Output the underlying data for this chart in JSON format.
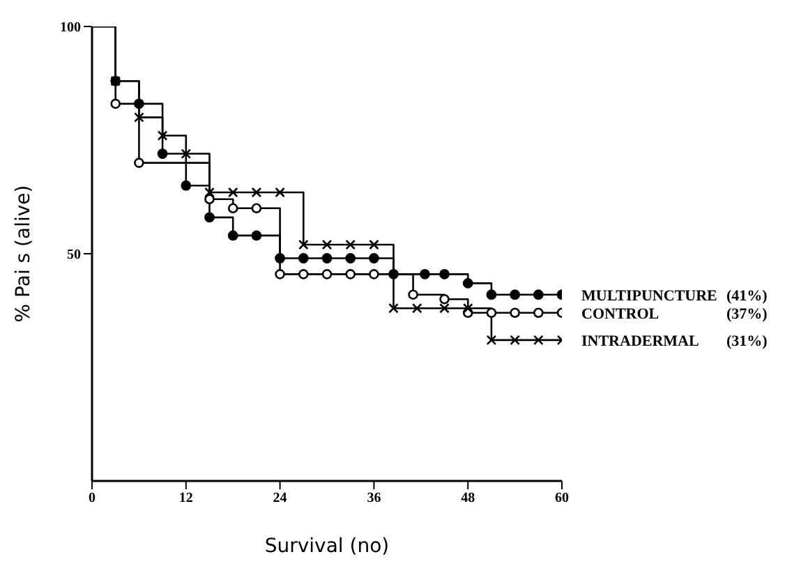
{
  "chart_data": {
    "type": "step",
    "xlabel": "Survival (no)",
    "ylabel": "% Pai   s (alive)",
    "xlim": [
      0,
      60
    ],
    "ylim": [
      0,
      100
    ],
    "xticks": [
      0,
      12,
      24,
      36,
      48,
      60
    ],
    "yticks": [
      50,
      100
    ],
    "line_style": "solid",
    "series": [
      {
        "name": "MULTIPUNCTURE",
        "color": "#000000",
        "marker": "circle",
        "x": [
          0,
          3,
          6,
          9,
          12,
          15,
          18,
          21,
          24,
          27,
          30,
          33,
          36,
          38.5,
          42.5,
          45,
          48,
          51,
          54,
          57,
          60
        ],
        "values": [
          100,
          88,
          83,
          72,
          65,
          58,
          54,
          54,
          49,
          49,
          49,
          49,
          49,
          45.5,
          45.5,
          45.5,
          43.5,
          41,
          41,
          41,
          41
        ]
      },
      {
        "name": "CONTROL",
        "color": "#000000",
        "marker": "open circle",
        "x": [
          0,
          3,
          6,
          15,
          18,
          21,
          24,
          27,
          30,
          33,
          36,
          41,
          45,
          48,
          51,
          54,
          57,
          60
        ],
        "values": [
          100,
          83,
          70,
          62,
          60,
          60,
          45.5,
          45.5,
          45.5,
          45.5,
          45.5,
          41,
          40,
          37,
          37,
          37,
          37,
          37
        ]
      },
      {
        "name": "INTRADERMAL",
        "color": "#000000",
        "marker": "cross",
        "x": [
          0,
          3,
          6,
          9,
          12,
          15,
          18,
          21,
          24,
          27,
          30,
          33,
          36,
          38.5,
          41.5,
          45,
          48,
          51,
          54,
          57,
          60
        ],
        "values": [
          100,
          88,
          80,
          76,
          72,
          63.5,
          63.5,
          63.5,
          63.5,
          52,
          52,
          52,
          52,
          38,
          38,
          38,
          38,
          31,
          31,
          31,
          31
        ]
      }
    ],
    "annotations": [
      "(41%)",
      "(37%)",
      "(31%)"
    ]
  }
}
